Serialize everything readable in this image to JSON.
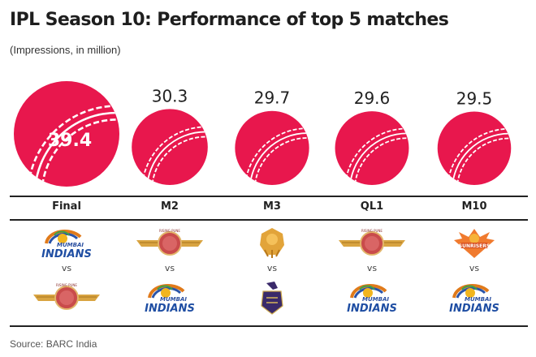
{
  "title": "IPL Season 10: Performance of top 5 matches",
  "subtitle": "(Impressions, in million)",
  "source": "Source: BARC India",
  "colors": {
    "ball": "#e8174d",
    "seam": "#ffffff",
    "rule": "#222222"
  },
  "vs_label": "vs",
  "chart_data": {
    "type": "bubble",
    "title": "IPL Season 10: Performance of top 5 matches",
    "subtitle": "(Impressions, in million)",
    "unit": "million impressions",
    "categories": [
      "Final",
      "M2",
      "M3",
      "QL1",
      "M10"
    ],
    "values": [
      39.4,
      30.3,
      29.7,
      29.6,
      29.5
    ],
    "value_labels": [
      "39.4",
      "30.3",
      "29.7",
      "29.6",
      "29.5"
    ],
    "matchups": [
      {
        "match": "Final",
        "team1": "Mumbai Indians",
        "team2": "Rising Pune Supergiant"
      },
      {
        "match": "M2",
        "team1": "Rising Pune Supergiant",
        "team2": "Mumbai Indians"
      },
      {
        "match": "M3",
        "team1": "Gujarat Lions",
        "team2": "Kolkata Knight Riders"
      },
      {
        "match": "QL1",
        "team1": "Rising Pune Supergiant",
        "team2": "Mumbai Indians"
      },
      {
        "match": "M10",
        "team1": "Sunrisers Hyderabad",
        "team2": "Mumbai Indians"
      }
    ],
    "source": "Source: BARC India"
  }
}
